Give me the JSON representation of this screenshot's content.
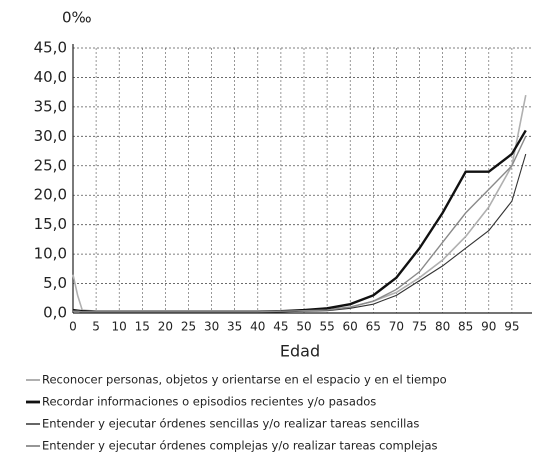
{
  "chart_data": {
    "type": "line",
    "y_label": "0‰",
    "x_label": "Edad",
    "x": [
      0,
      1,
      2,
      5,
      10,
      15,
      20,
      25,
      30,
      35,
      40,
      45,
      50,
      55,
      60,
      65,
      70,
      75,
      80,
      85,
      90,
      95,
      98
    ],
    "xlim": [
      0,
      100
    ],
    "xticks": [
      0,
      5,
      10,
      15,
      20,
      25,
      30,
      35,
      40,
      45,
      50,
      55,
      60,
      65,
      70,
      75,
      80,
      85,
      90,
      95
    ],
    "ylim": [
      0,
      45
    ],
    "yticks": [
      {
        "value": 0,
        "label": "0,0"
      },
      {
        "value": 5,
        "label": "5,0"
      },
      {
        "value": 10,
        "label": "10,0"
      },
      {
        "value": 15,
        "label": "15,0"
      },
      {
        "value": 20,
        "label": "20,0"
      },
      {
        "value": 25,
        "label": "25,0"
      },
      {
        "value": 30,
        "label": "30,0"
      },
      {
        "value": 35,
        "label": "35,0"
      },
      {
        "value": 40,
        "label": "40,0"
      },
      {
        "value": 45,
        "label": "45,0"
      }
    ],
    "grid": true,
    "series": [
      {
        "name": "Reconocer personas, objetos y orientarse en el espacio y en el tiempo",
        "color": "#b0b0b0",
        "values": [
          6.5,
          3,
          0.5,
          0.3,
          0.3,
          0.3,
          0.3,
          0.3,
          0.3,
          0.3,
          0.3,
          0.3,
          0.4,
          0.6,
          1.0,
          2,
          3.5,
          6,
          9,
          13,
          18,
          25,
          37
        ]
      },
      {
        "name": "Recordar informaciones o episodios recientes y/o pasados",
        "color": "#111111",
        "values": [
          0.5,
          0.4,
          0.3,
          0.2,
          0.2,
          0.2,
          0.2,
          0.2,
          0.2,
          0.2,
          0.2,
          0.3,
          0.5,
          0.8,
          1.5,
          3,
          6,
          11,
          17,
          24,
          24,
          27,
          31
        ]
      },
      {
        "name": "Entender y ejecutar órdenes sencillas y/o realizar tareas sencillas",
        "color": "#333333",
        "values": [
          0.3,
          0.3,
          0.2,
          0.2,
          0.2,
          0.2,
          0.2,
          0.2,
          0.2,
          0.2,
          0.2,
          0.2,
          0.3,
          0.4,
          0.8,
          1.5,
          3,
          5.5,
          8,
          11,
          14,
          19,
          27
        ]
      },
      {
        "name": "Entender y ejecutar órdenes complejas y/o realizar tareas complejas",
        "color": "#8a8a8a",
        "values": [
          0.3,
          0.3,
          0.2,
          0.2,
          0.2,
          0.2,
          0.2,
          0.2,
          0.2,
          0.2,
          0.2,
          0.3,
          0.4,
          0.5,
          1,
          2,
          4,
          7,
          12,
          17,
          21,
          25,
          30
        ]
      }
    ]
  }
}
